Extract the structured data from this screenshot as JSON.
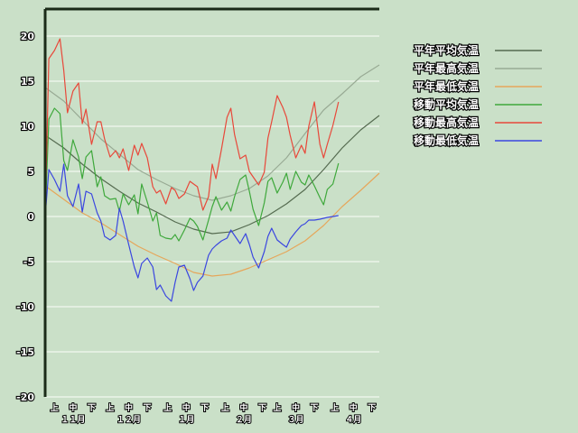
{
  "colors": {
    "background": "#cae0c8",
    "grid": "#f2f8f0",
    "axis": "#1b2b18"
  },
  "chart_data": {
    "type": "line",
    "xlabel": "",
    "ylabel": "",
    "ylim": [
      -20,
      20
    ],
    "yticks": [
      20,
      15,
      10,
      5,
      0,
      -5,
      -10,
      -15,
      -20
    ],
    "grid": true,
    "legend_position": "right",
    "x_unit": "day index starting Nov 1",
    "xlim": [
      0,
      180
    ],
    "x_ticks_dekad": [
      {
        "label": "上",
        "x": 5
      },
      {
        "label": "中",
        "x": 15
      },
      {
        "label": "下",
        "x": 25
      },
      {
        "label": "上",
        "x": 35
      },
      {
        "label": "中",
        "x": 45
      },
      {
        "label": "下",
        "x": 55
      },
      {
        "label": "上",
        "x": 66
      },
      {
        "label": "中",
        "x": 76
      },
      {
        "label": "下",
        "x": 86
      },
      {
        "label": "上",
        "x": 97
      },
      {
        "label": "中",
        "x": 107
      },
      {
        "label": "下",
        "x": 117
      },
      {
        "label": "上",
        "x": 125
      },
      {
        "label": "中",
        "x": 135
      },
      {
        "label": "下",
        "x": 145
      },
      {
        "label": "上",
        "x": 156
      },
      {
        "label": "中",
        "x": 166
      },
      {
        "label": "下",
        "x": 176
      }
    ],
    "x_ticks_month": [
      {
        "label": "１１月",
        "x": 15
      },
      {
        "label": "１２月",
        "x": 45
      },
      {
        "label": "１月",
        "x": 76
      },
      {
        "label": "２月",
        "x": 107
      },
      {
        "label": "３月",
        "x": 135
      },
      {
        "label": "４月",
        "x": 166
      }
    ],
    "series": [
      {
        "name": "平年平均気温",
        "color": "#556b50",
        "x": [
          0,
          10,
          20,
          30,
          40,
          50,
          60,
          70,
          80,
          90,
          100,
          110,
          120,
          130,
          140,
          150,
          160,
          170,
          180
        ],
        "y": [
          9.0,
          7.6,
          5.8,
          4.2,
          2.8,
          1.5,
          0.5,
          -0.6,
          -1.4,
          -1.9,
          -1.7,
          -0.9,
          0.1,
          1.4,
          3.0,
          5.2,
          7.6,
          9.6,
          11.2
        ]
      },
      {
        "name": "平年最高気温",
        "color": "#98aa94",
        "x": [
          0,
          10,
          20,
          30,
          40,
          50,
          60,
          70,
          80,
          90,
          100,
          110,
          120,
          130,
          140,
          150,
          160,
          170,
          180
        ],
        "y": [
          14.3,
          12.8,
          10.7,
          8.6,
          6.9,
          5.2,
          4.1,
          3.1,
          2.3,
          1.8,
          2.3,
          3.1,
          4.5,
          6.5,
          9.2,
          11.8,
          13.6,
          15.5,
          16.8
        ]
      },
      {
        "name": "平年最低気温",
        "color": "#e6a65a",
        "x": [
          0,
          10,
          20,
          30,
          40,
          50,
          60,
          70,
          80,
          90,
          100,
          110,
          120,
          130,
          140,
          150,
          160,
          170,
          180
        ],
        "y": [
          3.4,
          1.9,
          0.4,
          -0.7,
          -2.0,
          -3.3,
          -4.3,
          -5.2,
          -6.2,
          -6.6,
          -6.4,
          -5.7,
          -4.8,
          -3.9,
          -2.7,
          -1.0,
          1.1,
          2.9,
          4.8
        ]
      },
      {
        "name": "移動平均気温",
        "color": "#3ea83b",
        "x": [
          0,
          2,
          5,
          8,
          10,
          12,
          15,
          18,
          20,
          22,
          25,
          28,
          30,
          32,
          35,
          38,
          40,
          42,
          45,
          48,
          50,
          52,
          55,
          58,
          60,
          62,
          65,
          68,
          70,
          72,
          75,
          78,
          80,
          82,
          85,
          88,
          90,
          92,
          95,
          98,
          100,
          102,
          105,
          108,
          110,
          112,
          115,
          118,
          120,
          122,
          125,
          128,
          130,
          132,
          135,
          138,
          140,
          142,
          145,
          148,
          150,
          152,
          155,
          158
        ],
        "y": [
          0,
          10.8,
          12.0,
          11.4,
          6.2,
          5.1,
          8.5,
          6.6,
          4.2,
          6.6,
          7.3,
          3.3,
          4.4,
          2.3,
          1.9,
          2.0,
          0.6,
          2.5,
          1.3,
          2.4,
          0.3,
          3.6,
          1.6,
          -0.5,
          0.4,
          -2.1,
          -2.4,
          -2.5,
          -2.0,
          -2.7,
          -1.5,
          -0.2,
          -0.5,
          -1.1,
          -2.6,
          -0.4,
          1.1,
          2.2,
          0.7,
          1.6,
          0.6,
          2.2,
          4.1,
          4.6,
          2.8,
          0.8,
          -1.0,
          1.5,
          3.9,
          4.3,
          2.6,
          3.8,
          4.8,
          3.0,
          5.0,
          3.8,
          3.5,
          4.6,
          3.4,
          2.1,
          1.3,
          3.0,
          3.6,
          5.9
        ]
      },
      {
        "name": "移動最高気温",
        "color": "#e8483a",
        "x": [
          0,
          2,
          5,
          8,
          10,
          12,
          15,
          18,
          20,
          22,
          25,
          28,
          30,
          32,
          35,
          38,
          40,
          42,
          45,
          48,
          50,
          52,
          55,
          58,
          60,
          62,
          65,
          68,
          70,
          72,
          75,
          78,
          80,
          82,
          85,
          88,
          90,
          92,
          95,
          98,
          100,
          102,
          105,
          108,
          110,
          112,
          115,
          118,
          120,
          122,
          125,
          128,
          130,
          132,
          135,
          138,
          140,
          142,
          145,
          148,
          150,
          152,
          155,
          158
        ],
        "y": [
          0,
          17.5,
          18.4,
          19.7,
          16.2,
          11.5,
          13.9,
          14.8,
          10.3,
          11.9,
          8.0,
          10.5,
          10.5,
          8.6,
          6.6,
          7.3,
          6.5,
          7.5,
          5.1,
          7.9,
          6.8,
          8.1,
          6.5,
          3.3,
          2.6,
          2.9,
          1.4,
          3.2,
          2.9,
          2.0,
          2.5,
          3.9,
          3.6,
          3.3,
          0.7,
          2.2,
          5.8,
          4.2,
          7.5,
          11.0,
          12.0,
          9.1,
          6.4,
          6.8,
          5.0,
          4.4,
          3.5,
          4.9,
          8.7,
          10.5,
          13.4,
          12.1,
          11.0,
          9.0,
          6.5,
          7.9,
          7.0,
          10.0,
          12.7,
          8.0,
          6.5,
          8.0,
          10.1,
          12.7
        ]
      },
      {
        "name": "移動最低気温",
        "color": "#3a46e0",
        "x": [
          0,
          2,
          5,
          8,
          10,
          12,
          15,
          18,
          20,
          22,
          25,
          28,
          30,
          32,
          35,
          38,
          40,
          42,
          45,
          48,
          50,
          52,
          55,
          58,
          60,
          62,
          65,
          68,
          70,
          72,
          75,
          78,
          80,
          82,
          85,
          88,
          90,
          92,
          95,
          98,
          100,
          102,
          105,
          108,
          110,
          112,
          115,
          118,
          120,
          122,
          125,
          128,
          130,
          132,
          135,
          138,
          140,
          142,
          145,
          148,
          150,
          152,
          155,
          158
        ],
        "y": [
          0,
          5.2,
          4.1,
          2.8,
          5.8,
          2.3,
          1.1,
          3.6,
          0.5,
          2.8,
          2.5,
          0.4,
          -0.5,
          -2.2,
          -2.6,
          -2.1,
          0.9,
          -0.5,
          -3.1,
          -5.6,
          -6.8,
          -5.2,
          -4.6,
          -5.6,
          -8.1,
          -7.6,
          -8.8,
          -9.4,
          -7.3,
          -5.6,
          -5.4,
          -6.9,
          -8.2,
          -7.3,
          -6.6,
          -4.3,
          -3.6,
          -3.2,
          -2.7,
          -2.4,
          -1.5,
          -2.1,
          -3.0,
          -1.9,
          -3.1,
          -4.5,
          -5.7,
          -3.9,
          -2.2,
          -1.3,
          -2.6,
          -3.1,
          -3.4,
          -2.5,
          -1.7,
          -1.0,
          -0.8,
          -0.4,
          -0.4,
          -0.3,
          -0.2,
          -0.1,
          0.0,
          0.1
        ]
      }
    ]
  }
}
